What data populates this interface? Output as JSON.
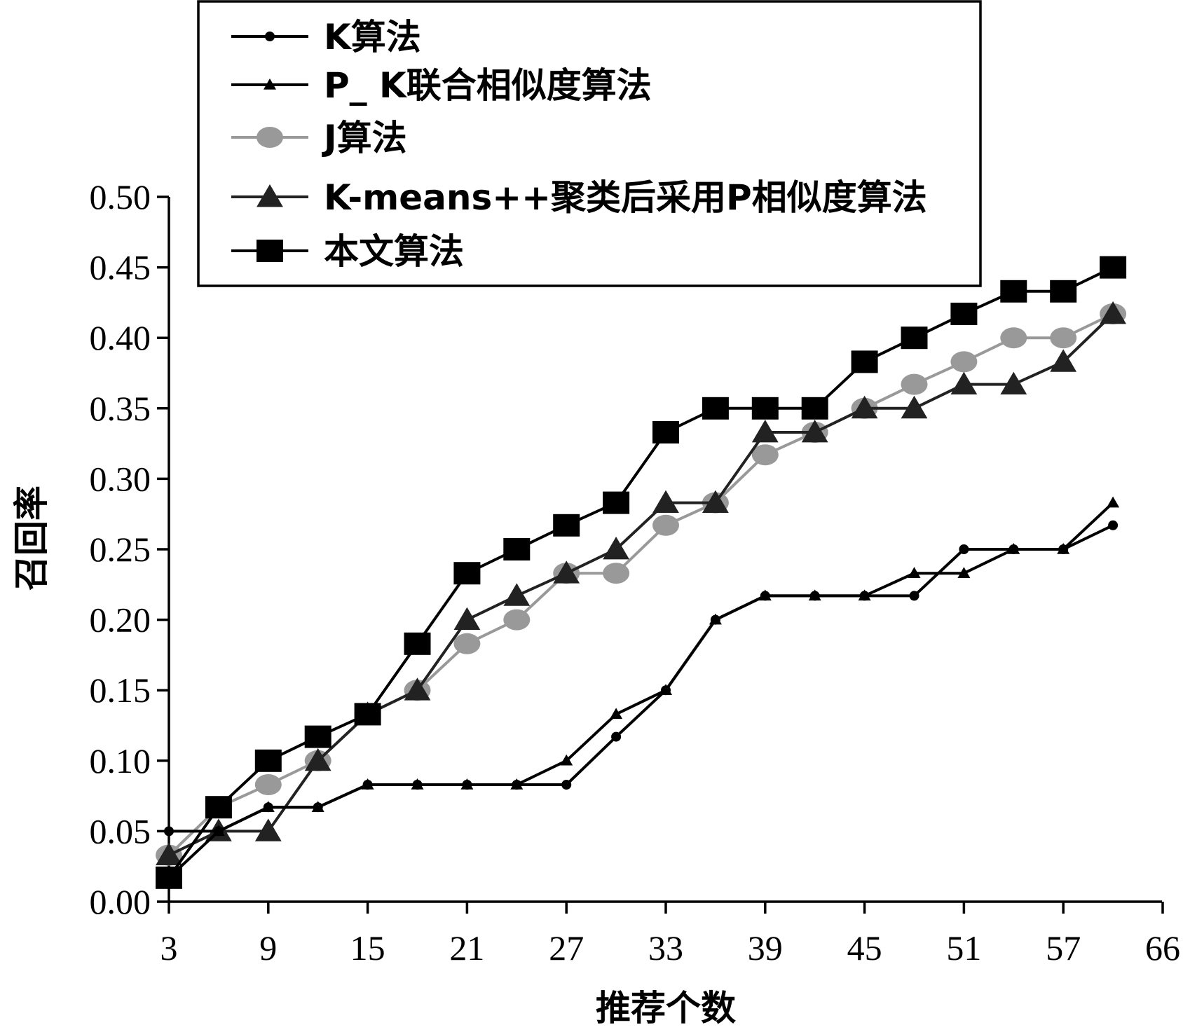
{
  "chart_data": {
    "type": "line",
    "title": "",
    "xlabel": "推荐个数",
    "ylabel": "召回率",
    "xlim": [
      3,
      66
    ],
    "ylim": [
      0.0,
      0.5
    ],
    "x_ticks": [
      "3",
      "9",
      "15",
      "21",
      "27",
      "33",
      "39",
      "45",
      "51",
      "57",
      "66"
    ],
    "y_ticks": [
      "0.00",
      "0.05",
      "0.10",
      "0.15",
      "0.20",
      "0.25",
      "0.30",
      "0.35",
      "0.40",
      "0.45",
      "0.50"
    ],
    "grid": false,
    "legend_position": "top",
    "x": [
      3,
      6,
      9,
      12,
      15,
      18,
      21,
      24,
      27,
      30,
      33,
      36,
      39,
      42,
      45,
      48,
      51,
      54,
      57,
      60
    ],
    "series": [
      {
        "name": "K算法",
        "color": "#000000",
        "marker": "small-circle",
        "values": [
          0.05,
          0.05,
          0.067,
          0.067,
          0.083,
          0.083,
          0.083,
          0.083,
          0.083,
          0.117,
          0.15,
          0.2,
          0.217,
          0.217,
          0.217,
          0.217,
          0.25,
          0.25,
          0.25,
          0.267
        ]
      },
      {
        "name": "P_ K联合相似度算法",
        "color": "#000000",
        "marker": "small-triangle",
        "values": [
          0.017,
          0.05,
          0.067,
          0.067,
          0.083,
          0.083,
          0.083,
          0.083,
          0.1,
          0.133,
          0.15,
          0.2,
          0.217,
          0.217,
          0.217,
          0.233,
          0.233,
          0.25,
          0.25,
          0.283
        ]
      },
      {
        "name": "J算法",
        "color": "#999999",
        "marker": "large-circle",
        "values": [
          0.033,
          0.067,
          0.083,
          0.1,
          0.133,
          0.15,
          0.183,
          0.2,
          0.233,
          0.233,
          0.267,
          0.283,
          0.317,
          0.333,
          0.35,
          0.367,
          0.383,
          0.4,
          0.4,
          0.417
        ]
      },
      {
        "name": "K-means++聚类后采用P相似度算法",
        "color": "#222222",
        "marker": "large-triangle",
        "values": [
          0.033,
          0.05,
          0.05,
          0.1,
          0.133,
          0.15,
          0.2,
          0.217,
          0.233,
          0.25,
          0.283,
          0.283,
          0.333,
          0.333,
          0.35,
          0.35,
          0.367,
          0.367,
          0.383,
          0.417
        ]
      },
      {
        "name": "本文算法",
        "color": "#000000",
        "marker": "square",
        "values": [
          0.017,
          0.067,
          0.1,
          0.117,
          0.133,
          0.183,
          0.233,
          0.25,
          0.267,
          0.283,
          0.333,
          0.35,
          0.35,
          0.35,
          0.383,
          0.4,
          0.417,
          0.433,
          0.433,
          0.45
        ]
      }
    ]
  }
}
